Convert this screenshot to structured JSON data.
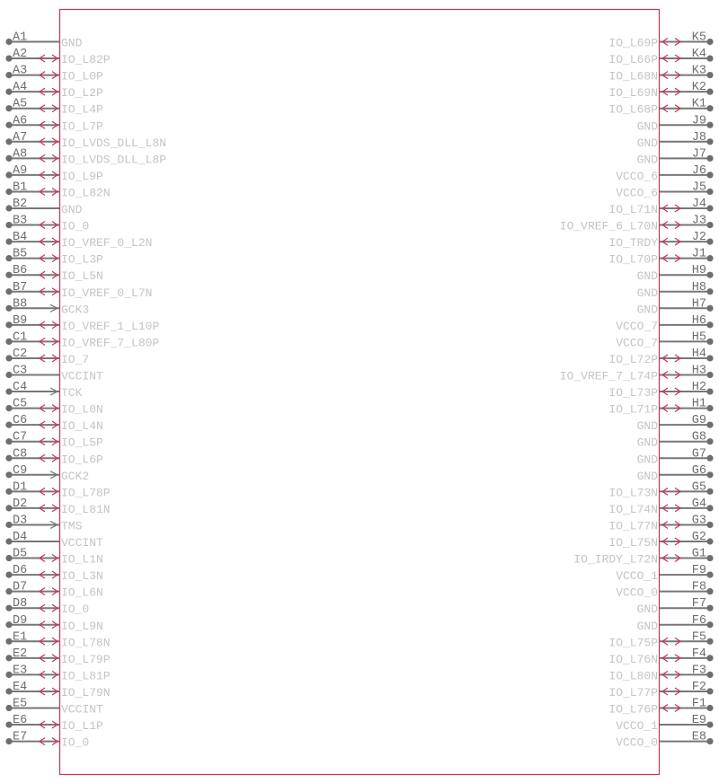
{
  "colors": {
    "body_outline": "#d0304f",
    "pin_line": "#777777",
    "label": "#c4c4c4",
    "bidir_marker": "#d0304f",
    "highlight_label": "#e8c8d0"
  },
  "left_pins": [
    {
      "number": "A1",
      "name": "GND",
      "type": "power"
    },
    {
      "number": "A2",
      "name": "IO_L82P",
      "type": "bidir"
    },
    {
      "number": "A3",
      "name": "IO_L0P",
      "type": "bidir"
    },
    {
      "number": "A4",
      "name": "IO_L2P",
      "type": "bidir"
    },
    {
      "number": "A5",
      "name": "IO_L4P",
      "type": "bidir"
    },
    {
      "number": "A6",
      "name": "IO_L7P",
      "type": "bidir"
    },
    {
      "number": "A7",
      "name": "IO_LVDS_DLL_L8N",
      "type": "bidir"
    },
    {
      "number": "A8",
      "name": "IO_LVDS_DLL_L8P",
      "type": "bidir"
    },
    {
      "number": "A9",
      "name": "IO_L9P",
      "type": "bidir"
    },
    {
      "number": "B1",
      "name": "IO_L82N",
      "type": "bidir"
    },
    {
      "number": "B2",
      "name": "GND",
      "type": "power"
    },
    {
      "number": "B3",
      "name": "IO_0",
      "type": "bidir"
    },
    {
      "number": "B4",
      "name": "IO_VREF_0_L2N",
      "type": "bidir"
    },
    {
      "number": "B5",
      "name": "IO_L3P",
      "type": "bidir"
    },
    {
      "number": "B6",
      "name": "IO_L5N",
      "type": "bidir"
    },
    {
      "number": "B7",
      "name": "IO_VREF_0_L7N",
      "type": "bidir"
    },
    {
      "number": "B8",
      "name": "GCK3",
      "type": "input"
    },
    {
      "number": "B9",
      "name": "IO_VREF_1_L10P",
      "type": "bidir"
    },
    {
      "number": "C1",
      "name": "IO_VREF_7_L80P",
      "type": "bidir"
    },
    {
      "number": "C2",
      "name": "IO_7",
      "type": "bidir"
    },
    {
      "number": "C3",
      "name": "VCCINT",
      "type": "power"
    },
    {
      "number": "C4",
      "name": "TCK",
      "type": "input"
    },
    {
      "number": "C5",
      "name": "IO_L0N",
      "type": "bidir"
    },
    {
      "number": "C6",
      "name": "IO_L4N",
      "type": "bidir"
    },
    {
      "number": "C7",
      "name": "IO_L5P",
      "type": "bidir"
    },
    {
      "number": "C8",
      "name": "IO_L6P",
      "type": "bidir"
    },
    {
      "number": "C9",
      "name": "GCK2",
      "type": "input"
    },
    {
      "number": "D1",
      "name": "IO_L78P",
      "type": "bidir"
    },
    {
      "number": "D2",
      "name": "IO_L81N",
      "type": "bidir"
    },
    {
      "number": "D3",
      "name": "TMS",
      "type": "input"
    },
    {
      "number": "D4",
      "name": "VCCINT",
      "type": "power"
    },
    {
      "number": "D5",
      "name": "IO_L1N",
      "type": "bidir"
    },
    {
      "number": "D6",
      "name": "IO_L3N",
      "type": "bidir"
    },
    {
      "number": "D7",
      "name": "IO_L6N",
      "type": "bidir"
    },
    {
      "number": "D8",
      "name": "IO_0",
      "type": "bidir"
    },
    {
      "number": "D9",
      "name": "IO_L9N",
      "type": "bidir"
    },
    {
      "number": "E1",
      "name": "IO_L78N",
      "type": "bidir"
    },
    {
      "number": "E2",
      "name": "IO_L79P",
      "type": "bidir"
    },
    {
      "number": "E3",
      "name": "IO_L81P",
      "type": "bidir"
    },
    {
      "number": "E4",
      "name": "IO_L79N",
      "type": "bidir"
    },
    {
      "number": "E5",
      "name": "VCCINT",
      "type": "power"
    },
    {
      "number": "E6",
      "name": "IO_L1P",
      "type": "bidir"
    },
    {
      "number": "E7",
      "name": "IO_0",
      "type": "bidir"
    }
  ],
  "right_pins": [
    {
      "number": "K5",
      "name": "IO_L69P",
      "type": "bidir"
    },
    {
      "number": "K4",
      "name": "IO_L66P",
      "type": "bidir"
    },
    {
      "number": "K3",
      "name": "IO_L68N",
      "type": "bidir"
    },
    {
      "number": "K2",
      "name": "IO_L69N",
      "type": "bidir"
    },
    {
      "number": "K1",
      "name": "IO_L68P",
      "type": "bidir"
    },
    {
      "number": "J9",
      "name": "GND",
      "type": "power"
    },
    {
      "number": "J8",
      "name": "GND",
      "type": "power"
    },
    {
      "number": "J7",
      "name": "GND",
      "type": "power"
    },
    {
      "number": "J6",
      "name": "VCCO_6",
      "type": "power"
    },
    {
      "number": "J5",
      "name": "VCCO_6",
      "type": "power"
    },
    {
      "number": "J4",
      "name": "IO_L71N",
      "type": "bidir"
    },
    {
      "number": "J3",
      "name": "IO_VREF_6_L70N",
      "type": "bidir"
    },
    {
      "number": "J2",
      "name": "IO_TRDY",
      "type": "bidir"
    },
    {
      "number": "J1",
      "name": "IO_L70P",
      "type": "bidir"
    },
    {
      "number": "H9",
      "name": "GND",
      "type": "power"
    },
    {
      "number": "H8",
      "name": "GND",
      "type": "power"
    },
    {
      "number": "H7",
      "name": "GND",
      "type": "power"
    },
    {
      "number": "H6",
      "name": "VCCO_7",
      "type": "power"
    },
    {
      "number": "H5",
      "name": "VCCO_7",
      "type": "power"
    },
    {
      "number": "H4",
      "name": "IO_L72P",
      "type": "bidir"
    },
    {
      "number": "H3",
      "name": "IO_VREF_7_L74P",
      "type": "bidir"
    },
    {
      "number": "H2",
      "name": "IO_L73P",
      "type": "bidir"
    },
    {
      "number": "H1",
      "name": "IO_L71P",
      "type": "bidir"
    },
    {
      "number": "G9",
      "name": "GND",
      "type": "power"
    },
    {
      "number": "G8",
      "name": "GND",
      "type": "power"
    },
    {
      "number": "G7",
      "name": "GND",
      "type": "power"
    },
    {
      "number": "G6",
      "name": "GND",
      "type": "power"
    },
    {
      "number": "G5",
      "name": "IO_L73N",
      "type": "bidir"
    },
    {
      "number": "G4",
      "name": "IO_L74N",
      "type": "bidir"
    },
    {
      "number": "G3",
      "name": "IO_L77N",
      "type": "bidir"
    },
    {
      "number": "G2",
      "name": "IO_L75N",
      "type": "bidir"
    },
    {
      "number": "G1",
      "name": "IO_IRDY_L72N",
      "type": "bidir"
    },
    {
      "number": "F9",
      "name": "VCCO_1",
      "type": "power"
    },
    {
      "number": "F8",
      "name": "VCCO_0",
      "type": "power"
    },
    {
      "number": "F7",
      "name": "GND",
      "type": "power"
    },
    {
      "number": "F6",
      "name": "GND",
      "type": "power"
    },
    {
      "number": "F5",
      "name": "IO_L75P",
      "type": "bidir"
    },
    {
      "number": "F4",
      "name": "IO_L76N",
      "type": "bidir"
    },
    {
      "number": "F3",
      "name": "IO_L80N",
      "type": "bidir"
    },
    {
      "number": "F2",
      "name": "IO_L77P",
      "type": "bidir"
    },
    {
      "number": "F1",
      "name": "IO_L76P",
      "type": "bidir"
    },
    {
      "number": "E9",
      "name": "VCCO_1",
      "type": "power"
    },
    {
      "number": "E8",
      "name": "VCCO_0",
      "type": "power",
      "highlighted": true
    }
  ]
}
